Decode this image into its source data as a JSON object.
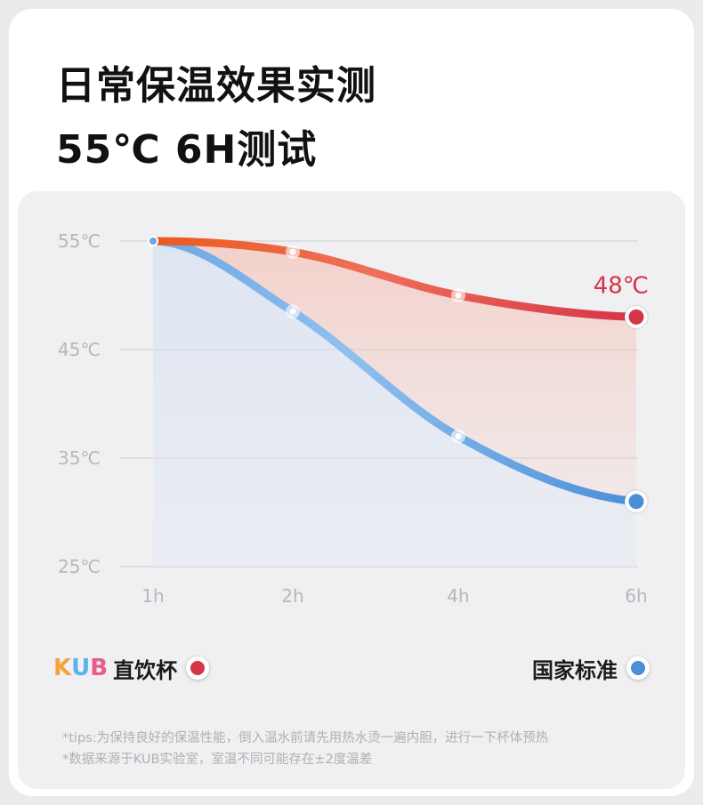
{
  "title_line1": "日常保温效果实测",
  "title_line2": "55℃ 6H测试",
  "chart_data": {
    "type": "line",
    "categories": [
      "1h",
      "2h",
      "4h",
      "6h"
    ],
    "y_ticks": [
      "55℃",
      "45℃",
      "35℃",
      "25℃"
    ],
    "ylim": [
      25,
      55
    ],
    "grid": true,
    "series": [
      {
        "name": "直饮杯",
        "values": [
          55,
          54,
          50,
          48
        ],
        "color": "#d63447",
        "color_start": "#ea5a1c",
        "end_label": "48℃"
      },
      {
        "name": "国家标准",
        "values": [
          55,
          48.5,
          37,
          31
        ],
        "color": "#4a8fd8",
        "color_start": "#6aa6e6"
      }
    ]
  },
  "legend": {
    "brand": "KUB",
    "brand_colors": [
      "#f2a33a",
      "#55b5e8",
      "#e95b8a"
    ],
    "kub_label": "直饮杯",
    "standard_label": "国家标准"
  },
  "notes": [
    "*tips:为保持良好的保温性能，倒入温水前请先用热水烫一遍内胆，进行一下杯体预热",
    "*数据来源于KUB实验室，室温不同可能存在±2度温差"
  ]
}
